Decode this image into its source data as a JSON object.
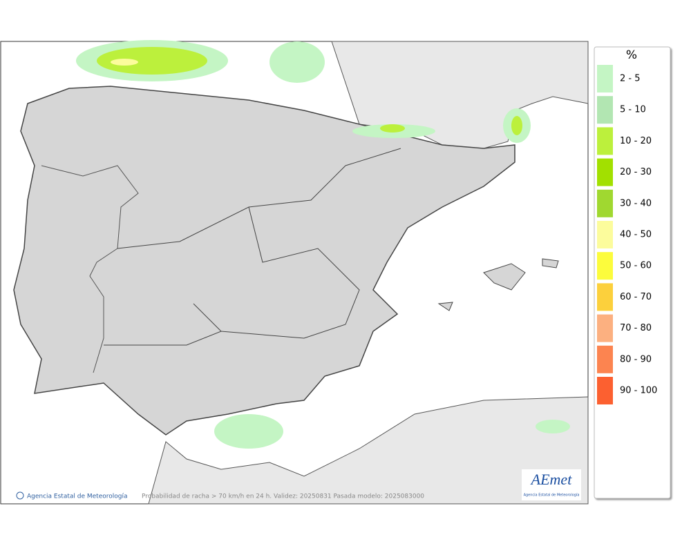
{
  "legend": {
    "title": "%",
    "items": [
      {
        "label": "2 - 5",
        "color": "#c4f5c4"
      },
      {
        "label": "5 - 10",
        "color": "#b2e6b2"
      },
      {
        "label": "10 - 20",
        "color": "#bcf03c"
      },
      {
        "label": "20 - 30",
        "color": "#a2e000"
      },
      {
        "label": "30 - 40",
        "color": "#a0d830"
      },
      {
        "label": "40 - 50",
        "color": "#fcfc9c"
      },
      {
        "label": "50 - 60",
        "color": "#fcfc3c"
      },
      {
        "label": "60 - 70",
        "color": "#fcd03c"
      },
      {
        "label": "70 - 80",
        "color": "#fcb080"
      },
      {
        "label": "80 - 90",
        "color": "#fc8450"
      },
      {
        "label": "90 - 100",
        "color": "#fc6030"
      }
    ]
  },
  "map": {
    "credit": "Agencia Estatal de Meteorología",
    "caption": "Probabilidad de racha > 70 km/h en 24 h. Validez: 20250831 Pasada modelo: 2025083000"
  },
  "logo": {
    "text": "AEmet",
    "subtitle": "Agencia Estatal de Meteorología"
  }
}
